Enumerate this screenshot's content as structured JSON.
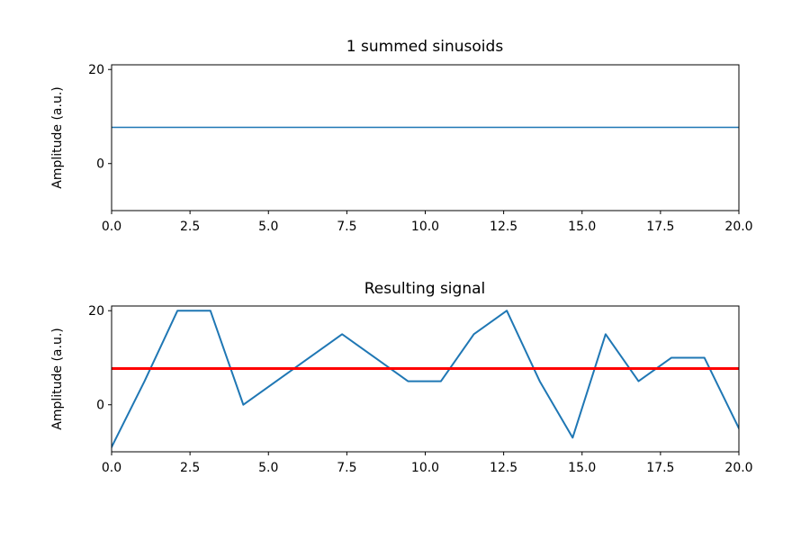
{
  "colors": {
    "series": "#1f77b4",
    "reference": "#ff0000",
    "axes": "#000000",
    "background": "#ffffff"
  },
  "chart_data": [
    {
      "type": "line",
      "title": "1 summed sinusoids",
      "xlabel": "",
      "ylabel": "Amplitude (a.u.)",
      "xlim": [
        0,
        20
      ],
      "ylim": [
        -10,
        21
      ],
      "xticks": [
        "0.0",
        "2.5",
        "5.0",
        "7.5",
        "10.0",
        "12.5",
        "15.0",
        "17.5",
        "20.0"
      ],
      "yticks": [
        "0",
        "20"
      ],
      "grid": false,
      "series": [
        {
          "color": "#1f77b4",
          "x": [
            0,
            20
          ],
          "y": [
            7.7,
            7.7
          ]
        }
      ]
    },
    {
      "type": "line",
      "title": "Resulting signal",
      "xlabel": "",
      "ylabel": "Amplitude (a.u.)",
      "xlim": [
        0,
        20
      ],
      "ylim": [
        -10,
        21
      ],
      "xticks": [
        "0.0",
        "2.5",
        "5.0",
        "7.5",
        "10.0",
        "12.5",
        "15.0",
        "17.5",
        "20.0"
      ],
      "yticks": [
        "0",
        "20"
      ],
      "grid": false,
      "series": [
        {
          "color": "#1f77b4",
          "x": [
            0,
            1.05,
            2.1,
            3.15,
            4.2,
            5.25,
            6.3,
            7.35,
            8.4,
            9.45,
            10.5,
            11.55,
            12.6,
            13.65,
            14.7,
            15.75,
            16.8,
            17.85,
            18.9,
            20
          ],
          "y": [
            -9,
            5,
            20,
            20,
            0,
            5,
            10,
            15,
            10,
            5,
            5,
            15,
            20,
            5,
            -7,
            15,
            5,
            10,
            10,
            -5
          ]
        },
        {
          "color": "#ff0000",
          "x": [
            0,
            20
          ],
          "y": [
            7.7,
            7.7
          ]
        }
      ]
    }
  ]
}
